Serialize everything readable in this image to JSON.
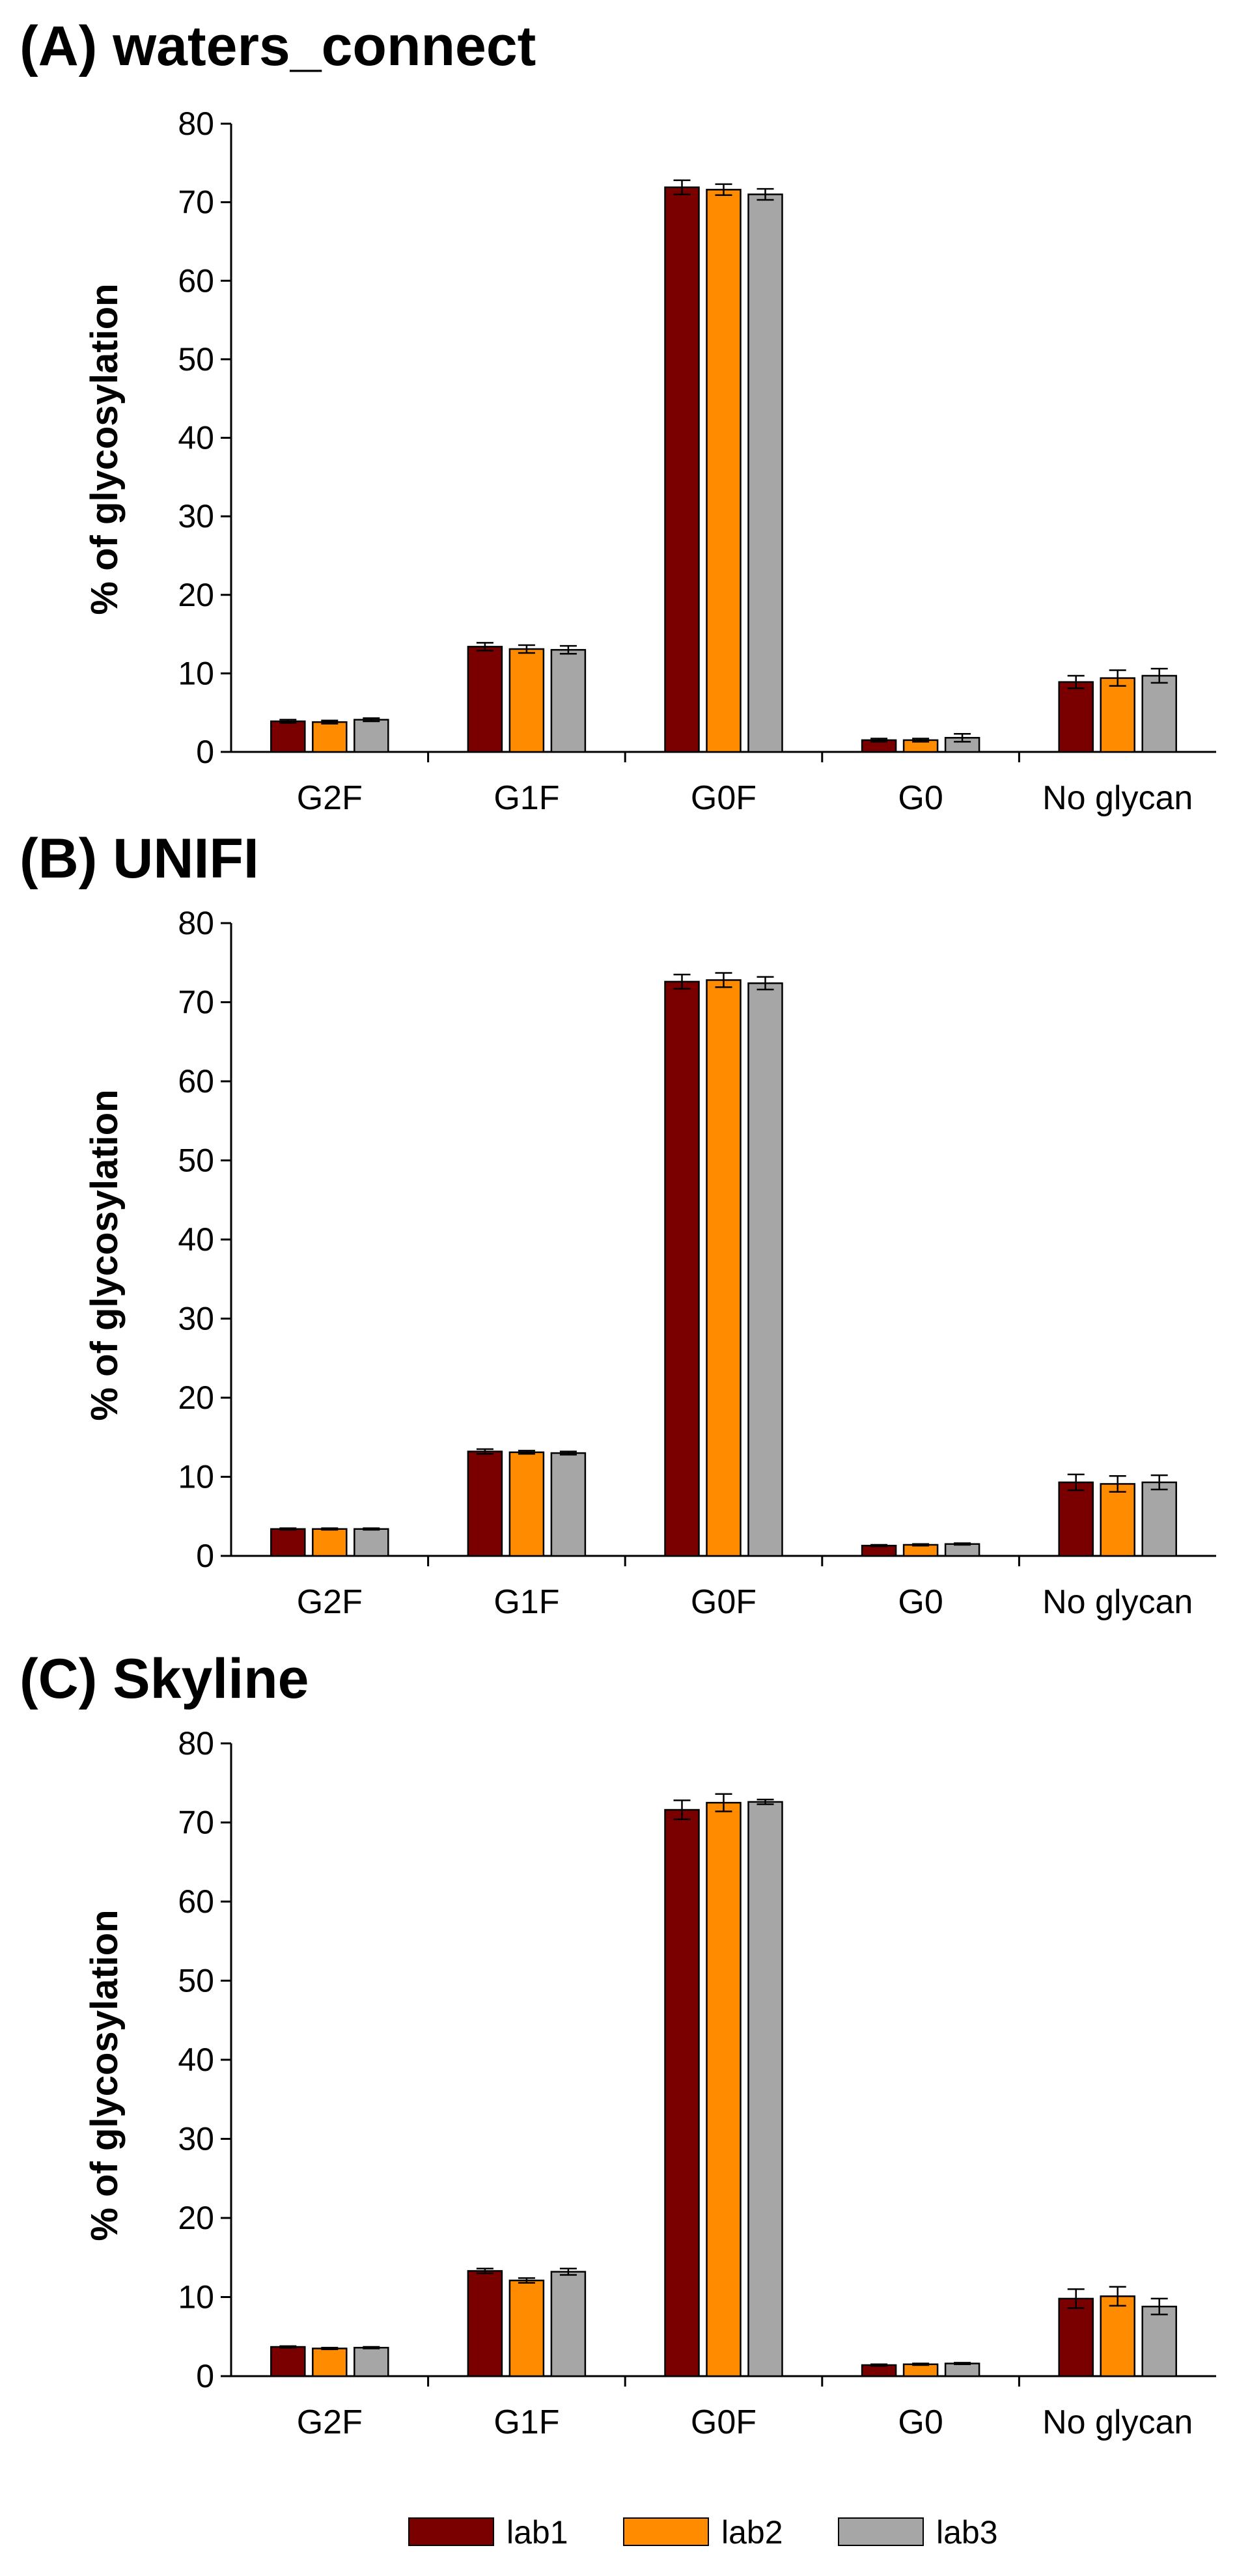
{
  "colors": {
    "lab1": "#7a0000",
    "lab2": "#ff8c00",
    "lab3": "#a6a6a6"
  },
  "legend": {
    "placement": "bottom-center",
    "items": [
      {
        "label": "lab1",
        "color": "#7a0000"
      },
      {
        "label": "lab2",
        "color": "#ff8c00"
      },
      {
        "label": "lab3",
        "color": "#a6a6a6"
      }
    ]
  },
  "chart_data": [
    {
      "type": "bar",
      "title": "(A) waters_connect",
      "ylabel": "% of glycosylation",
      "xlabel": "",
      "ylim": [
        0,
        80
      ],
      "yticks": [
        0,
        10,
        20,
        30,
        40,
        50,
        60,
        70,
        80
      ],
      "categories": [
        "G2F",
        "G1F",
        "G0F",
        "G0",
        "No glycan"
      ],
      "series": [
        {
          "name": "lab1",
          "values": [
            3.9,
            13.4,
            71.9,
            1.5,
            8.9
          ],
          "errors": [
            0.2,
            0.5,
            0.9,
            0.2,
            0.8
          ]
        },
        {
          "name": "lab2",
          "values": [
            3.8,
            13.1,
            71.6,
            1.5,
            9.4
          ],
          "errors": [
            0.2,
            0.5,
            0.7,
            0.2,
            1.0
          ]
        },
        {
          "name": "lab3",
          "values": [
            4.1,
            13.0,
            71.0,
            1.8,
            9.7
          ],
          "errors": [
            0.2,
            0.5,
            0.7,
            0.5,
            0.9
          ]
        }
      ]
    },
    {
      "type": "bar",
      "title": "(B) UNIFI",
      "ylabel": "% of glycosylation",
      "xlabel": "",
      "ylim": [
        0,
        80
      ],
      "yticks": [
        0,
        10,
        20,
        30,
        40,
        50,
        60,
        70,
        80
      ],
      "categories": [
        "G2F",
        "G1F",
        "G0F",
        "G0",
        "No glycan"
      ],
      "series": [
        {
          "name": "lab1",
          "values": [
            3.4,
            13.2,
            72.6,
            1.3,
            9.3
          ],
          "errors": [
            0.1,
            0.3,
            0.9,
            0.1,
            1.0
          ]
        },
        {
          "name": "lab2",
          "values": [
            3.4,
            13.1,
            72.8,
            1.4,
            9.1
          ],
          "errors": [
            0.1,
            0.2,
            0.9,
            0.1,
            1.0
          ]
        },
        {
          "name": "lab3",
          "values": [
            3.4,
            13.0,
            72.4,
            1.5,
            9.3
          ],
          "errors": [
            0.1,
            0.2,
            0.8,
            0.1,
            0.9
          ]
        }
      ]
    },
    {
      "type": "bar",
      "title": "(C) Skyline",
      "ylabel": "% of glycosylation",
      "xlabel": "",
      "ylim": [
        0,
        80
      ],
      "yticks": [
        0,
        10,
        20,
        30,
        40,
        50,
        60,
        70,
        80
      ],
      "categories": [
        "G2F",
        "G1F",
        "G0F",
        "G0",
        "No glycan"
      ],
      "series": [
        {
          "name": "lab1",
          "values": [
            3.7,
            13.3,
            71.6,
            1.4,
            9.8
          ],
          "errors": [
            0.1,
            0.3,
            1.2,
            0.1,
            1.2
          ]
        },
        {
          "name": "lab2",
          "values": [
            3.5,
            12.1,
            72.5,
            1.5,
            10.1
          ],
          "errors": [
            0.1,
            0.3,
            1.1,
            0.1,
            1.2
          ]
        },
        {
          "name": "lab3",
          "values": [
            3.6,
            13.2,
            72.6,
            1.6,
            8.8
          ],
          "errors": [
            0.1,
            0.4,
            0.3,
            0.1,
            1.0
          ]
        }
      ]
    }
  ]
}
